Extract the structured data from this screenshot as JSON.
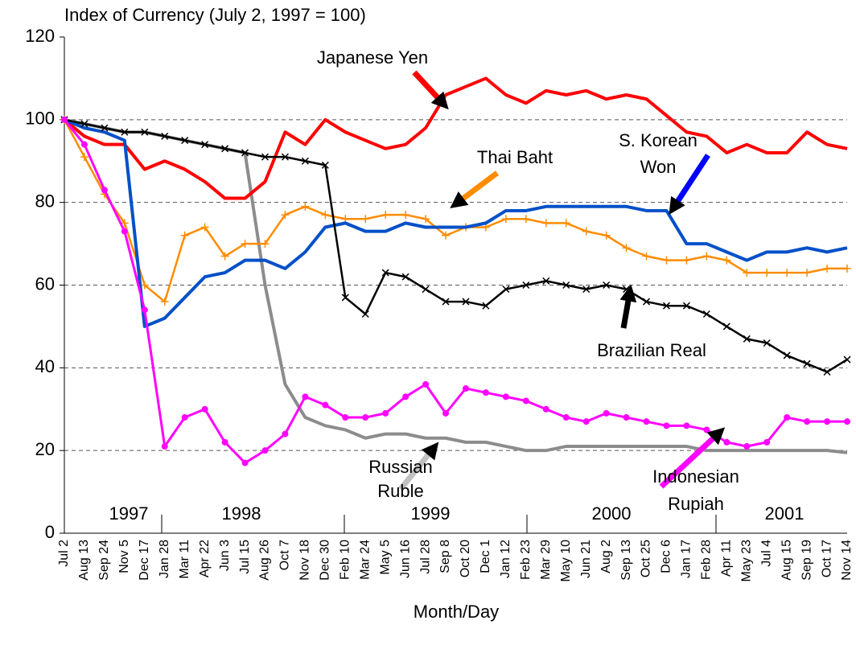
{
  "chart_data": {
    "type": "line",
    "title": "Index of Currency (July 2, 1997 = 100)",
    "x_label": "Month/Day",
    "categories": [
      "Jul 2",
      "Aug 13",
      "Sep 24",
      "Nov 5",
      "Dec 17",
      "Jan 28",
      "Mar 11",
      "Apr 22",
      "Jun 3",
      "Jul 15",
      "Aug 26",
      "Oct 7",
      "Nov 18",
      "Dec 30",
      "Feb 10",
      "Mar 24",
      "May 5",
      "Jun 16",
      "Jul 28",
      "Sep 8",
      "Oct 20",
      "Dec 1",
      "Jan 12",
      "Feb 23",
      "Mar 29",
      "May 10",
      "Jun 21",
      "Aug 2",
      "Sep 13",
      "Oct 25",
      "Dec 6",
      "Jan 17",
      "Feb 28",
      "Apr 11",
      "May 23",
      "Jul 4",
      "Aug 15",
      "Sep 19",
      "Oct 17",
      "Nov 14"
    ],
    "year_labels": [
      "1997",
      "1998",
      "1999",
      "2000",
      "2001"
    ],
    "ylim": [
      0,
      120
    ],
    "yticks": [
      0,
      20,
      40,
      60,
      80,
      100,
      120
    ],
    "grid": true,
    "series": [
      {
        "label": [
          "Russian",
          "Ruble"
        ],
        "color": "#8c8c8c",
        "marker": "none",
        "values": [
          100,
          99,
          98,
          97,
          97,
          96,
          95,
          94,
          93,
          92,
          60,
          36,
          28,
          26,
          25,
          23,
          24,
          24,
          23,
          23,
          22,
          22,
          21,
          20,
          20,
          21,
          21,
          21,
          21,
          21,
          21,
          21,
          20,
          20,
          20,
          20,
          20,
          20,
          20,
          19.5
        ]
      },
      {
        "label": [
          "Japanese Yen"
        ],
        "color": "#ff0000",
        "marker": "none",
        "values": [
          100,
          96,
          94,
          94,
          88,
          90,
          88,
          85,
          81,
          81,
          85,
          97,
          94,
          100,
          97,
          95,
          93,
          94,
          98,
          106,
          108,
          110,
          106,
          104,
          107,
          106,
          107,
          105,
          106,
          105,
          101,
          97,
          96,
          92,
          94,
          92,
          92,
          97,
          94,
          93
        ]
      },
      {
        "label": [
          "Thai Baht"
        ],
        "color": "#ff8c00",
        "marker": "plus",
        "values": [
          100,
          91,
          82,
          75,
          60,
          56,
          72,
          74,
          67,
          70,
          70,
          77,
          79,
          77,
          76,
          76,
          77,
          77,
          76,
          72,
          74,
          74,
          76,
          76,
          75,
          75,
          73,
          72,
          69,
          67,
          66,
          66,
          67,
          66,
          63,
          63,
          63,
          63,
          64,
          64
        ]
      },
      {
        "label": [
          "S. Korean",
          "Won"
        ],
        "color": "#0050c8",
        "marker": "none",
        "values": [
          100,
          98,
          97,
          95,
          50,
          52,
          57,
          62,
          63,
          66,
          66,
          64,
          68,
          74,
          75,
          73,
          73,
          75,
          74,
          74,
          74,
          75,
          78,
          78,
          79,
          79,
          79,
          79,
          79,
          78,
          78,
          70,
          70,
          68,
          66,
          68,
          68,
          69,
          68,
          69
        ]
      },
      {
        "label": [
          "Brazilian Real"
        ],
        "color": "#000000",
        "marker": "cross",
        "values": [
          100,
          99,
          98,
          97,
          97,
          96,
          95,
          94,
          93,
          92,
          91,
          91,
          90,
          89,
          57,
          53,
          63,
          62,
          59,
          56,
          56,
          55,
          59,
          60,
          61,
          60,
          59,
          60,
          59,
          56,
          55,
          55,
          53,
          50,
          47,
          46,
          43,
          41,
          39,
          42
        ]
      },
      {
        "label": [
          "Indonesian",
          "Rupiah"
        ],
        "color": "#ff00ff",
        "marker": "dot",
        "values": [
          100,
          94,
          83,
          73,
          54,
          21,
          28,
          30,
          22,
          17,
          20,
          24,
          33,
          31,
          28,
          28,
          29,
          33,
          36,
          29,
          35,
          34,
          33,
          32,
          30,
          28,
          27,
          29,
          28,
          27,
          26,
          26,
          25,
          22,
          21,
          22,
          28,
          27,
          27,
          27
        ]
      }
    ]
  }
}
